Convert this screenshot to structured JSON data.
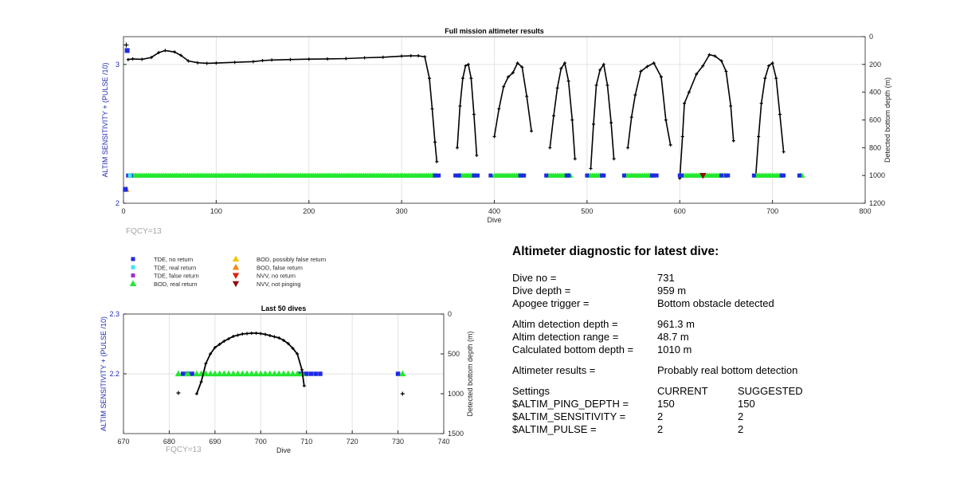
{
  "chart_data": [
    {
      "type": "scatter",
      "title": "Full mission altimeter results",
      "xlabel": "Dive",
      "ylabel_left": "ALTIM SENSITIVITY + (PULSE /10)",
      "ylabel_right": "Detected bottom depth (m)",
      "xlim": [
        0,
        800
      ],
      "ylim_left": [
        2,
        3.2
      ],
      "ylim_right": [
        0,
        1200
      ],
      "right_axis_reversed": true,
      "x_ticks": [
        0,
        100,
        200,
        300,
        400,
        500,
        600,
        700,
        800
      ],
      "y_ticks_left": [
        2,
        3
      ],
      "y_ticks_right": [
        0,
        200,
        400,
        600,
        800,
        1000,
        1200
      ],
      "grid": true,
      "annotation": "FQCY=13",
      "depth_segments": [
        [
          [
            5,
            165
          ],
          [
            10,
            160
          ],
          [
            20,
            163
          ],
          [
            30,
            150
          ],
          [
            38,
            115
          ],
          [
            45,
            100
          ],
          [
            55,
            110
          ],
          [
            62,
            135
          ],
          [
            70,
            175
          ],
          [
            80,
            188
          ],
          [
            90,
            192
          ],
          [
            100,
            190
          ],
          [
            120,
            185
          ],
          [
            140,
            180
          ],
          [
            150,
            172
          ],
          [
            160,
            168
          ],
          [
            180,
            165
          ],
          [
            200,
            162
          ],
          [
            220,
            160
          ],
          [
            240,
            158
          ],
          [
            260,
            152
          ],
          [
            280,
            148
          ],
          [
            300,
            140
          ],
          [
            310,
            138
          ],
          [
            318,
            138
          ],
          [
            325,
            145
          ],
          [
            330,
            300
          ],
          [
            333,
            520
          ],
          [
            336,
            760
          ],
          [
            338,
            900
          ]
        ],
        [
          [
            360,
            800
          ],
          [
            363,
            500
          ],
          [
            366,
            300
          ],
          [
            369,
            210
          ],
          [
            372,
            200
          ],
          [
            375,
            300
          ],
          [
            378,
            560
          ],
          [
            381,
            855
          ]
        ],
        [
          [
            400,
            720
          ],
          [
            405,
            520
          ],
          [
            410,
            360
          ],
          [
            415,
            290
          ],
          [
            420,
            260
          ],
          [
            425,
            190
          ],
          [
            430,
            220
          ],
          [
            435,
            430
          ],
          [
            440,
            680
          ]
        ],
        [
          [
            460,
            800
          ],
          [
            464,
            570
          ],
          [
            468,
            370
          ],
          [
            472,
            230
          ],
          [
            476,
            190
          ],
          [
            480,
            320
          ],
          [
            484,
            600
          ],
          [
            487,
            880
          ]
        ],
        [
          [
            504,
            950
          ],
          [
            507,
            630
          ],
          [
            510,
            350
          ],
          [
            514,
            240
          ],
          [
            518,
            200
          ],
          [
            522,
            350
          ],
          [
            526,
            620
          ],
          [
            529,
            880
          ]
        ],
        [
          [
            544,
            800
          ],
          [
            548,
            580
          ],
          [
            552,
            420
          ],
          [
            558,
            250
          ],
          [
            565,
            215
          ],
          [
            572,
            190
          ],
          [
            580,
            290
          ],
          [
            585,
            600
          ],
          [
            590,
            780
          ]
        ],
        [
          [
            600,
            1020
          ],
          [
            603,
            720
          ],
          [
            605,
            480
          ],
          [
            610,
            400
          ],
          [
            618,
            270
          ],
          [
            625,
            210
          ],
          [
            632,
            130
          ],
          [
            638,
            140
          ],
          [
            645,
            175
          ],
          [
            650,
            250
          ],
          [
            655,
            500
          ],
          [
            658,
            750
          ]
        ],
        [
          [
            682,
            1000
          ],
          [
            685,
            720
          ],
          [
            688,
            480
          ],
          [
            692,
            300
          ],
          [
            696,
            210
          ],
          [
            700,
            190
          ],
          [
            704,
            300
          ],
          [
            708,
            560
          ],
          [
            712,
            830
          ]
        ]
      ],
      "marker_series": [
        {
          "name": "BOD, real return",
          "color": "#22e82e",
          "marker": "triangle-up",
          "y": 2.2,
          "ranges": [
            [
              7,
              338
            ],
            [
              362,
              380
            ],
            [
              400,
              430
            ],
            [
              458,
              482
            ],
            [
              502,
              517
            ],
            [
              542,
              570
            ],
            [
              604,
              648
            ],
            [
              682,
              710
            ],
            [
              730,
              732
            ]
          ]
        },
        {
          "name": "TDE, no return",
          "color": "#1f2be3",
          "marker": "square",
          "y": 2.2,
          "points": [
            5,
            8,
            336,
            340,
            358,
            362,
            378,
            382,
            396,
            428,
            432,
            456,
            478,
            480,
            500,
            516,
            518,
            540,
            570,
            572,
            575,
            600,
            602,
            645,
            650,
            652,
            680,
            710,
            712,
            729
          ]
        },
        {
          "name": "TDE, real return",
          "color": "#3ee6f0",
          "marker": "square",
          "y": 2.2,
          "points": [
            7
          ]
        },
        {
          "name": "BOD, false return",
          "color": "#f0a020",
          "marker": "triangle-up",
          "y": 2.1,
          "points": [
            3
          ]
        },
        {
          "name": "NVV, not pinging",
          "color": "#8a1010",
          "marker": "triangle-down",
          "y": 2.2,
          "points": [
            625
          ]
        }
      ],
      "special_points": [
        {
          "x": 3,
          "depth": 60,
          "marker": "plus",
          "color": "#000000"
        },
        {
          "x": 4,
          "y": 3.1,
          "marker": "square",
          "color": "#1f2be3"
        },
        {
          "x": 2,
          "y": 2.1,
          "marker": "square",
          "color": "#1f2be3"
        }
      ]
    },
    {
      "type": "scatter",
      "title": "Last 50 dives",
      "xlabel": "Dive",
      "ylabel_left": "ALTIM SENSITIVITY + (PULSE /10)",
      "ylabel_right": "Detected bottom depth (m)",
      "xlim": [
        670,
        740
      ],
      "ylim_left": [
        2.1,
        2.3
      ],
      "ylim_right": [
        0,
        1500
      ],
      "right_axis_reversed": true,
      "x_ticks": [
        670,
        680,
        690,
        700,
        710,
        720,
        730,
        740
      ],
      "y_ticks_left": [
        2.2,
        2.3
      ],
      "y_ticks_right": [
        0,
        500,
        1000,
        1500
      ],
      "grid": true,
      "annotation": "FQCY=13",
      "depth_curve": [
        [
          686,
          1000
        ],
        [
          687,
          850
        ],
        [
          688,
          620
        ],
        [
          689,
          500
        ],
        [
          690,
          420
        ],
        [
          691,
          380
        ],
        [
          692,
          340
        ],
        [
          693,
          310
        ],
        [
          694,
          280
        ],
        [
          695,
          265
        ],
        [
          696,
          250
        ],
        [
          697,
          245
        ],
        [
          698,
          240
        ],
        [
          699,
          240
        ],
        [
          700,
          245
        ],
        [
          701,
          255
        ],
        [
          702,
          270
        ],
        [
          703,
          285
        ],
        [
          704,
          300
        ],
        [
          705,
          330
        ],
        [
          706,
          370
        ],
        [
          707,
          430
        ],
        [
          708,
          500
        ],
        [
          709,
          700
        ],
        [
          709.5,
          900
        ]
      ],
      "isolated_depth_points": [
        [
          682,
          990
        ],
        [
          731,
          1000
        ]
      ],
      "bod_real_return": [
        682,
        684,
        686,
        687,
        688,
        689,
        690,
        691,
        692,
        693,
        694,
        695,
        696,
        697,
        698,
        699,
        700,
        701,
        702,
        703,
        704,
        705,
        706,
        707,
        708,
        709,
        731
      ],
      "tde_no_return": [
        683,
        684,
        685,
        708.5,
        709,
        710,
        711,
        712,
        713,
        730
      ]
    }
  ],
  "legend": [
    {
      "label": "TDE, no return",
      "color": "#1f2be3",
      "marker": "square"
    },
    {
      "label": "TDE, real return",
      "color": "#3ee6f0",
      "marker": "square"
    },
    {
      "label": "TDE, false return",
      "color": "#9b30d0",
      "marker": "square"
    },
    {
      "label": "BOD, real return",
      "color": "#22e82e",
      "marker": "triangle-up"
    },
    {
      "label": "BOD, possibly false return",
      "color": "#f5c400",
      "marker": "triangle-up"
    },
    {
      "label": "BOD, false return",
      "color": "#f08a10",
      "marker": "triangle-up"
    },
    {
      "label": "NVV, no return",
      "color": "#d92010",
      "marker": "triangle-down"
    },
    {
      "label": "NVV, not pinging",
      "color": "#8a1010",
      "marker": "triangle-down"
    }
  ],
  "diagnostic": {
    "title": "Altimeter diagnostic for latest dive:",
    "dive_no_label": "Dive no =",
    "dive_no": "731",
    "dive_depth_label": "Dive depth =",
    "dive_depth": "959 m",
    "apogee_label": "Apogee trigger =",
    "apogee": "Bottom obstacle detected",
    "det_depth_label": "Altim detection depth =",
    "det_depth": "961.3 m",
    "det_range_label": "Altim detection range =",
    "det_range": "48.7 m",
    "calc_depth_label": "Calculated bottom depth =",
    "calc_depth": "1010 m",
    "results_label": "Altimeter results =",
    "results": "Probably real bottom detection",
    "settings_label": "Settings",
    "current_label": "CURRENT",
    "suggested_label": "SUGGESTED",
    "ping_label": "$ALTIM_PING_DEPTH =",
    "ping_current": "150",
    "ping_suggested": "150",
    "sens_label": "$ALTIM_SENSITIVITY =",
    "sens_current": "2",
    "sens_suggested": "2",
    "pulse_label": "$ALTIM_PULSE =",
    "pulse_current": "2",
    "pulse_suggested": "2"
  }
}
